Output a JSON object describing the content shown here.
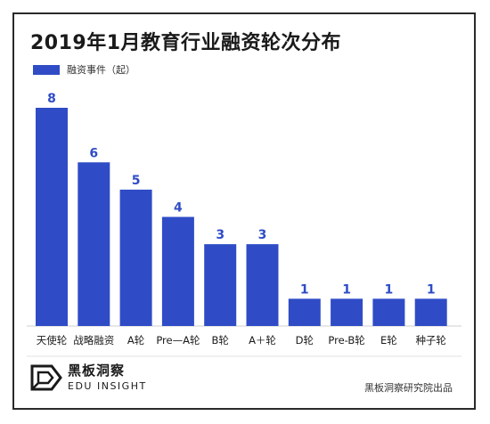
{
  "chart_data": {
    "type": "bar",
    "title": "2019年1月教育行业融资轮次分布",
    "categories": [
      "天使轮",
      "战略融资",
      "A轮",
      "Pre—A轮",
      "B轮",
      "A＋轮",
      "D轮",
      "Pre-B轮",
      "E轮",
      "种子轮"
    ],
    "series": [
      {
        "name": "融资事件（起）",
        "values": [
          8,
          6,
          5,
          4,
          3,
          3,
          1,
          1,
          1,
          1
        ]
      }
    ],
    "ylim": [
      0,
      8
    ],
    "grid": false,
    "legend": "top-left",
    "bar_color": "#2f4cc6"
  },
  "brand": {
    "name_cn": "黑板洞察",
    "name_en": "EDU INSIGHT"
  },
  "credit": "黑板洞察研究院出品"
}
